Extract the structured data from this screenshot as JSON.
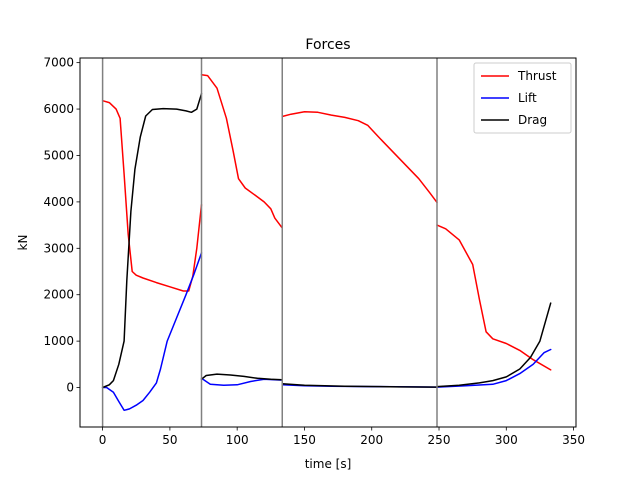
{
  "chart_data": {
    "type": "line",
    "title": "Forces",
    "xlabel": "time [s]",
    "ylabel": "kN",
    "xlim": [
      -16.8,
      351.8
    ],
    "ylim": [
      -850,
      7100
    ],
    "xticks": [
      0,
      50,
      100,
      150,
      200,
      250,
      300,
      350
    ],
    "yticks": [
      0,
      1000,
      2000,
      3000,
      4000,
      5000,
      6000,
      7000
    ],
    "grid": false,
    "legend_position": "top-right",
    "vlines": [
      0,
      73.5,
      133.5,
      248.5
    ],
    "vline_color": "#808080",
    "series": [
      {
        "name": "Thrust",
        "color": "#ff0000",
        "segments": [
          [
            [
              0,
              6180
            ],
            [
              5,
              6140
            ],
            [
              10,
              6000
            ],
            [
              13,
              5800
            ],
            [
              16,
              4600
            ],
            [
              19,
              3300
            ],
            [
              22,
              2500
            ],
            [
              25,
              2420
            ],
            [
              30,
              2360
            ],
            [
              40,
              2260
            ],
            [
              50,
              2170
            ],
            [
              60,
              2080
            ],
            [
              64,
              2080
            ],
            [
              67,
              2400
            ],
            [
              70,
              3000
            ],
            [
              73.5,
              3940
            ]
          ],
          [
            [
              73.5,
              6740
            ],
            [
              78,
              6720
            ],
            [
              85,
              6450
            ],
            [
              92,
              5800
            ],
            [
              97,
              5100
            ],
            [
              101,
              4500
            ],
            [
              106,
              4300
            ],
            [
              113,
              4150
            ],
            [
              120,
              4000
            ],
            [
              125,
              3850
            ],
            [
              128,
              3650
            ],
            [
              133.5,
              3440
            ]
          ],
          [
            [
              133.5,
              5840
            ],
            [
              140,
              5890
            ],
            [
              150,
              5940
            ],
            [
              160,
              5930
            ],
            [
              170,
              5870
            ],
            [
              180,
              5820
            ],
            [
              190,
              5750
            ],
            [
              197,
              5650
            ],
            [
              205,
              5400
            ],
            [
              215,
              5100
            ],
            [
              225,
              4800
            ],
            [
              235,
              4500
            ],
            [
              243,
              4200
            ],
            [
              248.5,
              3990
            ]
          ],
          [
            [
              248.5,
              3500
            ],
            [
              255,
              3420
            ],
            [
              265,
              3180
            ],
            [
              275,
              2650
            ],
            [
              280,
              1900
            ],
            [
              285,
              1200
            ],
            [
              290,
              1050
            ],
            [
              300,
              950
            ],
            [
              310,
              800
            ],
            [
              320,
              600
            ],
            [
              333,
              380
            ]
          ]
        ]
      },
      {
        "name": "Lift",
        "color": "#0000ff",
        "segments": [
          [
            [
              0,
              0
            ],
            [
              3,
              0
            ],
            [
              8,
              -100
            ],
            [
              12,
              -300
            ],
            [
              16,
              -490
            ],
            [
              20,
              -460
            ],
            [
              25,
              -380
            ],
            [
              30,
              -280
            ],
            [
              35,
              -100
            ],
            [
              40,
              100
            ],
            [
              43,
              400
            ],
            [
              48,
              1000
            ],
            [
              55,
              1500
            ],
            [
              62,
              2000
            ],
            [
              68,
              2450
            ],
            [
              73.5,
              2900
            ]
          ],
          [
            [
              73.5,
              200
            ],
            [
              80,
              70
            ],
            [
              90,
              50
            ],
            [
              100,
              60
            ],
            [
              110,
              130
            ],
            [
              120,
              180
            ],
            [
              133.5,
              160
            ]
          ],
          [
            [
              133.5,
              60
            ],
            [
              150,
              40
            ],
            [
              170,
              30
            ],
            [
              200,
              20
            ],
            [
              230,
              15
            ],
            [
              248.5,
              10
            ]
          ],
          [
            [
              248.5,
              10
            ],
            [
              270,
              40
            ],
            [
              290,
              70
            ],
            [
              300,
              150
            ],
            [
              310,
              300
            ],
            [
              320,
              500
            ],
            [
              328,
              750
            ],
            [
              333,
              820
            ]
          ]
        ]
      },
      {
        "name": "Drag",
        "color": "#000000",
        "segments": [
          [
            [
              0,
              0
            ],
            [
              5,
              60
            ],
            [
              8,
              150
            ],
            [
              12,
              500
            ],
            [
              16,
              1000
            ],
            [
              18,
              2300
            ],
            [
              21,
              3800
            ],
            [
              24,
              4700
            ],
            [
              28,
              5400
            ],
            [
              32,
              5850
            ],
            [
              37,
              5990
            ],
            [
              45,
              6010
            ],
            [
              55,
              6000
            ],
            [
              62,
              5960
            ],
            [
              66,
              5930
            ],
            [
              70,
              6000
            ],
            [
              73.5,
              6330
            ]
          ],
          [
            [
              73.5,
              180
            ],
            [
              77,
              260
            ],
            [
              85,
              290
            ],
            [
              95,
              270
            ],
            [
              105,
              240
            ],
            [
              115,
              200
            ],
            [
              125,
              180
            ],
            [
              133.5,
              170
            ]
          ],
          [
            [
              133.5,
              80
            ],
            [
              150,
              50
            ],
            [
              180,
              30
            ],
            [
              220,
              15
            ],
            [
              248.5,
              10
            ]
          ],
          [
            [
              248.5,
              20
            ],
            [
              265,
              50
            ],
            [
              280,
              100
            ],
            [
              290,
              150
            ],
            [
              300,
              230
            ],
            [
              310,
              400
            ],
            [
              318,
              650
            ],
            [
              325,
              1000
            ],
            [
              333,
              1820
            ]
          ]
        ]
      }
    ]
  }
}
